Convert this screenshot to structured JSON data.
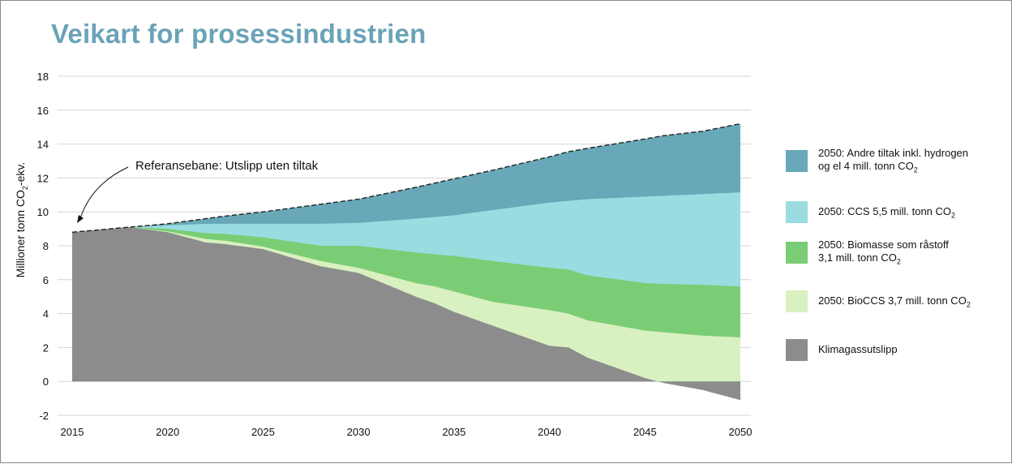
{
  "title": "Veikart for prosessindustrien",
  "chart_data": {
    "type": "area",
    "title": "Veikart for prosessindustrien",
    "xlabel": "",
    "ylabel": "Millioner tonn CO2-ekv.",
    "xlim": [
      2015,
      2050
    ],
    "ylim": [
      -2,
      18
    ],
    "x_ticks": [
      "2015",
      "2020",
      "2025",
      "2030",
      "2035",
      "2040",
      "2045",
      "2050"
    ],
    "y_ticks": [
      "18",
      "16",
      "14",
      "12",
      "10",
      "8",
      "6",
      "4",
      "2",
      "0",
      "-2"
    ],
    "grid": true,
    "legend_position": "right",
    "annotation": "Referansebane: Utslipp uten tiltak",
    "years": [
      2015,
      2018,
      2020,
      2022,
      2023,
      2025,
      2028,
      2030,
      2033,
      2034,
      2035,
      2037,
      2040,
      2041,
      2042,
      2045,
      2046,
      2048,
      2050
    ],
    "series": [
      {
        "name": "Klimagassutslipp",
        "color": "#8c8c8c",
        "values": [
          8.8,
          9.1,
          8.8,
          8.2,
          8.1,
          7.8,
          6.8,
          6.4,
          5.0,
          4.6,
          4.1,
          3.3,
          2.1,
          2.0,
          1.4,
          0.2,
          -0.1,
          -0.5,
          -1.1
        ]
      },
      {
        "name": "2050: BioCCS 3,7 mill. tonn CO",
        "name_sub": "2",
        "color": "#d9f0c0",
        "values": [
          8.8,
          9.1,
          8.85,
          8.4,
          8.3,
          7.95,
          7.1,
          6.7,
          5.8,
          5.6,
          5.3,
          4.7,
          4.2,
          4.0,
          3.6,
          3.0,
          2.9,
          2.7,
          2.6
        ]
      },
      {
        "name": "2050: Biomasse som råstoff 3,1 mill. tonn CO",
        "name_sub": "2",
        "color": "#7acd74",
        "values": [
          8.8,
          9.1,
          9.0,
          8.75,
          8.7,
          8.5,
          8.0,
          8.0,
          7.6,
          7.5,
          7.4,
          7.1,
          6.7,
          6.6,
          6.25,
          5.8,
          5.75,
          5.7,
          5.6
        ]
      },
      {
        "name": "2050: CCS 5,5 mill. tonn CO",
        "name_sub": "2",
        "color": "#9adce0",
        "values": [
          8.8,
          9.1,
          9.2,
          9.3,
          9.3,
          9.3,
          9.3,
          9.35,
          9.6,
          9.7,
          9.8,
          10.1,
          10.55,
          10.65,
          10.75,
          10.9,
          10.95,
          11.05,
          11.15
        ]
      },
      {
        "name": "2050: Andre tiltak inkl. hydrogen og el 4 mill. tonn CO",
        "name_sub": "2",
        "color": "#68a8b8",
        "values": [
          8.8,
          9.1,
          9.3,
          9.6,
          9.75,
          10.0,
          10.45,
          10.75,
          11.45,
          11.7,
          11.95,
          12.45,
          13.25,
          13.55,
          13.75,
          14.3,
          14.5,
          14.75,
          15.2
        ]
      }
    ]
  },
  "legend": [
    {
      "line1": "2050: Andre tiltak inkl. hydrogen",
      "line2": "og el 4 mill. tonn CO",
      "sub": "2",
      "color": "#68a8b8"
    },
    {
      "line1": "2050: CCS 5,5 mill. tonn CO",
      "line2": "",
      "sub": "2",
      "color": "#9adce0"
    },
    {
      "line1": "2050: Biomasse som råstoff",
      "line2": "3,1 mill. tonn CO",
      "sub": "2",
      "color": "#7acd74"
    },
    {
      "line1": "2050: BioCCS 3,7 mill. tonn CO",
      "line2": "",
      "sub": "2",
      "color": "#d9f0c0"
    },
    {
      "line1": "Klimagassutslipp",
      "line2": "",
      "sub": "",
      "color": "#8c8c8c"
    }
  ],
  "ylabel_parts": {
    "pre": "Millioner tonn CO",
    "sub": "2",
    "post": "-ekv."
  }
}
